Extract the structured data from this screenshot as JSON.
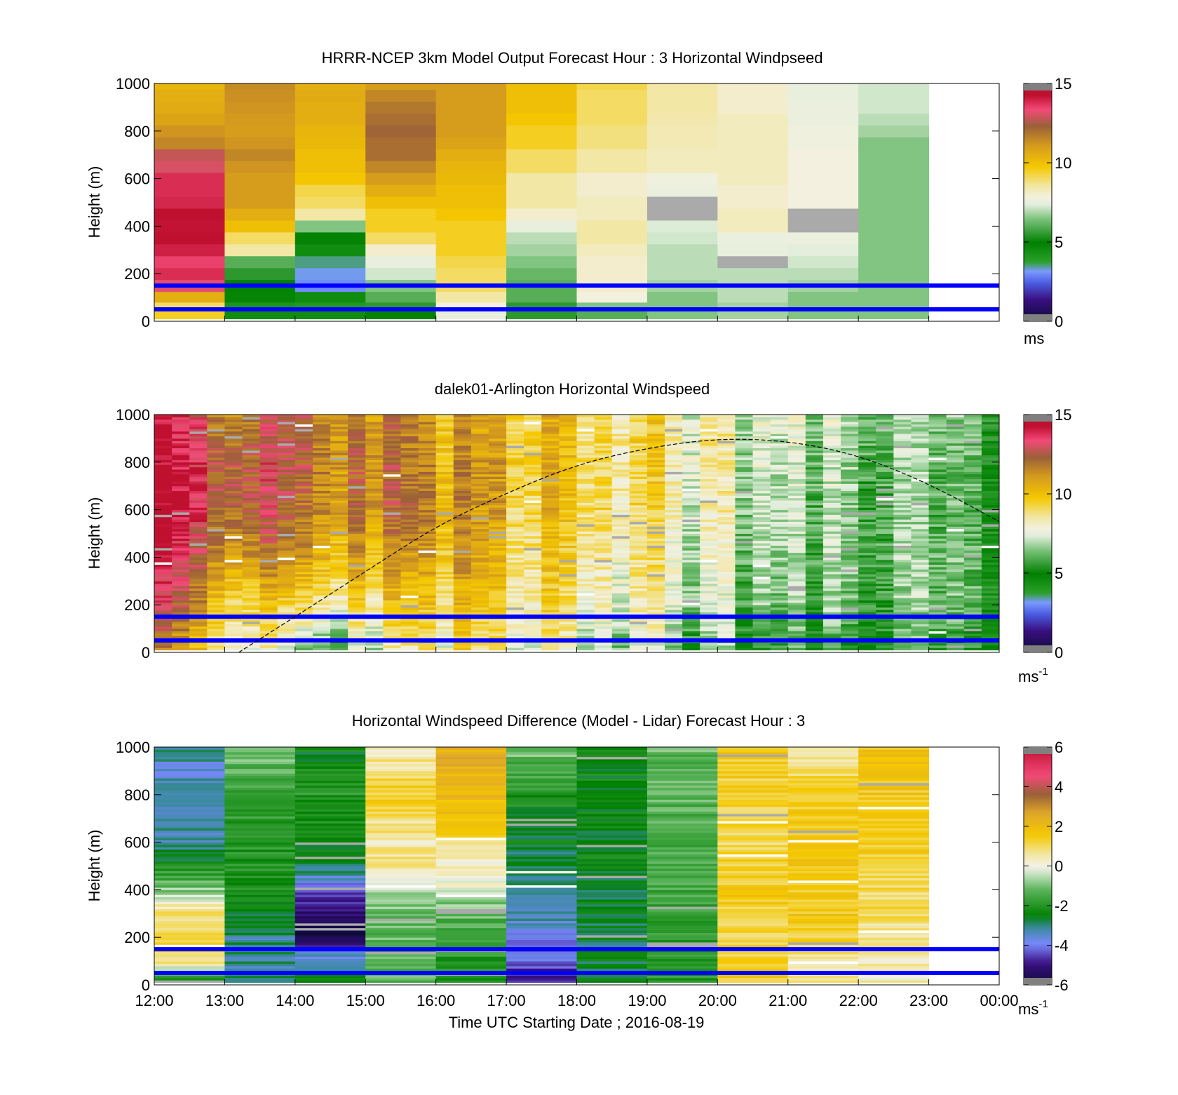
{
  "chart_data": [
    {
      "type": "heatmap",
      "title": "HRRR-NCEP 3km Model Output   Forecast Hour : 3 Horizontal Windpseed",
      "ylabel": "Height (m)",
      "ylim": [
        0,
        1000
      ],
      "yticks": [
        "0",
        "200",
        "400",
        "600",
        "800",
        "1000"
      ],
      "xlim_hours": [
        12,
        24
      ],
      "colorbar": {
        "min": 0,
        "max": 15,
        "ticks": [
          "0",
          "5",
          "10",
          "15"
        ],
        "unit": "ms",
        "unit_sup": ""
      },
      "hlines_m": [
        150,
        50
      ],
      "heights_m": [
        25,
        60,
        100,
        150,
        200,
        250,
        300,
        350,
        400,
        450,
        500,
        550,
        600,
        650,
        700,
        750,
        800,
        850,
        900,
        950,
        1000
      ],
      "columns": [
        {
          "hour": 12,
          "values": [
            9.5,
            9.0,
            10.5,
            13.2,
            13.8,
            13.5,
            14.0,
            14.5,
            14.2,
            14.3,
            13.9,
            13.8,
            13.8,
            13.0,
            12.8,
            11.5,
            11.2,
            10.8,
            10.6,
            10.5,
            10.3
          ]
        },
        {
          "hour": 13,
          "values": [
            4.5,
            4.2,
            4.8,
            5.0,
            5.5,
            6.0,
            8.5,
            9.0,
            10.0,
            10.5,
            11.0,
            11.0,
            11.0,
            11.2,
            11.5,
            11.2,
            11.0,
            11.1,
            11.2,
            11.3,
            11.4
          ]
        },
        {
          "hour": 14,
          "values": [
            4.5,
            4.0,
            4.5,
            3.0,
            3.2,
            3.5,
            4.5,
            5.0,
            6.5,
            8.5,
            9.0,
            9.2,
            9.8,
            10.0,
            10.0,
            10.2,
            10.3,
            10.5,
            10.5,
            10.6,
            10.5
          ]
        },
        {
          "hour": 15,
          "values": [
            5.0,
            5.5,
            6.0,
            6.5,
            7.2,
            7.5,
            8.0,
            9.0,
            9.5,
            9.5,
            10.0,
            10.5,
            11.0,
            11.5,
            12.0,
            12.0,
            12.2,
            12.0,
            11.8,
            11.5,
            11.0
          ]
        },
        {
          "hour": 16,
          "values": [
            7.5,
            7.8,
            8.5,
            9.0,
            9.0,
            9.2,
            9.5,
            9.5,
            9.5,
            9.8,
            10.0,
            10.0,
            10.2,
            10.3,
            10.5,
            10.8,
            11.0,
            11.0,
            11.0,
            11.0,
            11.0
          ]
        },
        {
          "hour": 17,
          "values": [
            5.5,
            5.5,
            6.0,
            6.0,
            6.2,
            6.5,
            6.8,
            7.0,
            7.5,
            8.0,
            8.5,
            8.5,
            8.5,
            9.0,
            9.0,
            9.5,
            9.5,
            9.8,
            10.0,
            10.0,
            10.0
          ]
        },
        {
          "hour": 18,
          "values": [
            6.0,
            6.5,
            7.8,
            8.0,
            8.0,
            8.0,
            8.2,
            8.5,
            8.5,
            8.2,
            8.2,
            8.0,
            8.0,
            8.5,
            8.5,
            8.8,
            8.8,
            9.0,
            9.0,
            9.0,
            9.2
          ]
        },
        {
          "hour": 19,
          "values": [
            6.5,
            6.5,
            6.5,
            6.8,
            7.0,
            7.0,
            7.0,
            7.2,
            7.3,
            -1,
            -1,
            7.6,
            7.7,
            8.2,
            8.2,
            8.3,
            8.3,
            8.4,
            8.5,
            8.5,
            8.5
          ]
        },
        {
          "hour": 20,
          "values": [
            6.8,
            6.8,
            7.0,
            7.0,
            7.0,
            -1,
            7.5,
            7.6,
            8.2,
            8.2,
            8.0,
            8.0,
            8.2,
            8.2,
            8.2,
            8.2,
            8.2,
            8.2,
            8.0,
            8.0,
            8.0
          ]
        },
        {
          "hour": 21,
          "values": [
            6.5,
            6.5,
            6.5,
            6.8,
            7.0,
            7.2,
            7.4,
            7.6,
            -1,
            -1,
            7.8,
            7.8,
            7.8,
            7.8,
            7.8,
            7.7,
            7.7,
            7.6,
            7.6,
            7.5,
            7.5
          ]
        },
        {
          "hour": 22,
          "values": [
            6.5,
            6.5,
            6.5,
            6.5,
            6.5,
            6.5,
            6.5,
            6.5,
            6.5,
            6.5,
            6.5,
            6.5,
            6.5,
            6.5,
            6.5,
            6.5,
            6.8,
            7.0,
            7.2,
            7.2,
            7.2
          ]
        }
      ]
    },
    {
      "type": "heatmap",
      "title": "dalek01-Arlington  Horizontal Windspeed",
      "ylabel": "Height (m)",
      "ylim": [
        0,
        1000
      ],
      "yticks": [
        "0",
        "200",
        "400",
        "600",
        "800",
        "1000"
      ],
      "xlim_hours": [
        12,
        24
      ],
      "colorbar": {
        "min": 0,
        "max": 15,
        "ticks": [
          "0",
          "5",
          "10",
          "15"
        ],
        "unit": "ms",
        "unit_sup": "-1"
      },
      "hlines_m": [
        150,
        50
      ],
      "columns_per_hour": 4,
      "column_range_hours": [
        12,
        23.75
      ],
      "profile_knots_m": [
        0,
        200,
        400,
        600,
        800,
        1000
      ],
      "profile_columns": [
        {
          "hour": 12.0,
          "speeds": [
            11,
            13,
            13.8,
            14.5,
            14.2,
            14
          ]
        },
        {
          "hour": 13.0,
          "speeds": [
            8.5,
            9.8,
            11.5,
            12.8,
            13.0,
            12
          ]
        },
        {
          "hour": 14.0,
          "speeds": [
            6.0,
            8.8,
            10.8,
            11.6,
            12.2,
            12
          ]
        },
        {
          "hour": 15.0,
          "speeds": [
            7.0,
            9.2,
            10.5,
            11.8,
            11.8,
            11.5
          ]
        },
        {
          "hour": 16.0,
          "speeds": [
            8.5,
            9.5,
            10.5,
            11.0,
            10.8,
            10.5
          ]
        },
        {
          "hour": 17.0,
          "speeds": [
            8.0,
            9.0,
            9.5,
            10.0,
            10.2,
            10.0
          ]
        },
        {
          "hour": 18.0,
          "speeds": [
            7.8,
            8.8,
            9.2,
            9.8,
            10.0,
            9.8
          ]
        },
        {
          "hour": 19.0,
          "speeds": [
            6.5,
            7.8,
            8.2,
            8.6,
            8.8,
            8.8
          ]
        },
        {
          "hour": 20.0,
          "speeds": [
            6.0,
            6.8,
            7.2,
            7.6,
            7.8,
            8.0
          ]
        },
        {
          "hour": 21.0,
          "speeds": [
            5.5,
            6.3,
            6.6,
            6.8,
            7.0,
            7.4
          ]
        },
        {
          "hour": 22.0,
          "speeds": [
            5.2,
            6.0,
            6.2,
            6.2,
            6.4,
            6.8
          ]
        },
        {
          "hour": 23.0,
          "speeds": [
            5.0,
            5.8,
            5.8,
            5.6,
            5.8,
            6.0
          ]
        }
      ],
      "boundary_layer_curve_m": [
        {
          "hour": 13.2,
          "height": 0
        },
        {
          "hour": 14.0,
          "height": 150
        },
        {
          "hour": 15.0,
          "height": 340
        },
        {
          "hour": 16.0,
          "height": 530
        },
        {
          "hour": 17.0,
          "height": 670
        },
        {
          "hour": 18.0,
          "height": 790
        },
        {
          "hour": 19.0,
          "height": 860
        },
        {
          "hour": 20.0,
          "height": 900
        },
        {
          "hour": 21.0,
          "height": 890
        },
        {
          "hour": 22.0,
          "height": 830
        },
        {
          "hour": 23.0,
          "height": 710
        },
        {
          "hour": 24.0,
          "height": 550
        }
      ]
    },
    {
      "type": "heatmap",
      "title": "Horizontal Windspeed Difference (Model - Lidar) Forecast Hour : 3",
      "ylabel": "Height (m)",
      "xlabel": "Time UTC  Starting Date ; 2016-08-19",
      "ylim": [
        0,
        1000
      ],
      "yticks": [
        "0",
        "200",
        "400",
        "600",
        "800",
        "1000"
      ],
      "xlim_hours": [
        12,
        24
      ],
      "xticks": [
        "12:00",
        "13:00",
        "14:00",
        "15:00",
        "16:00",
        "17:00",
        "18:00",
        "19:00",
        "20:00",
        "21:00",
        "22:00",
        "23:00",
        "00:00"
      ],
      "colorbar": {
        "min": -6,
        "max": 6,
        "ticks": [
          "-6",
          "-4",
          "-2",
          "0",
          "2",
          "4",
          "6"
        ],
        "unit": "ms",
        "unit_sup": "-1"
      },
      "hlines_m": [
        150,
        50
      ],
      "profile_knots_m": [
        0,
        100,
        200,
        300,
        400,
        500,
        600,
        700,
        800,
        900,
        1000
      ],
      "profile_columns": [
        {
          "hour": 12,
          "diffs": [
            -3.5,
            1.0,
            1.2,
            1.0,
            -0.8,
            -2.2,
            -3.2,
            -3.0,
            -3.2,
            -3.6,
            -3.0
          ]
        },
        {
          "hour": 13,
          "diffs": [
            -3.0,
            -3.2,
            -3.0,
            -2.5,
            -2.3,
            -2.0,
            -2.0,
            -1.8,
            -1.6,
            -1.4,
            -0.8
          ]
        },
        {
          "hour": 14,
          "diffs": [
            -2.5,
            -3.0,
            -5.6,
            -5.2,
            -4.2,
            -2.8,
            -2.6,
            -2.2,
            -2.0,
            -2.2,
            -2.5
          ]
        },
        {
          "hour": 15,
          "diffs": [
            -1.2,
            -1.4,
            -1.2,
            -1.0,
            -0.6,
            0.8,
            0.6,
            0.8,
            1.4,
            0.8,
            0.4
          ]
        },
        {
          "hour": 16,
          "diffs": [
            -2.2,
            -2.0,
            -1.8,
            -1.2,
            -0.3,
            0.3,
            0.8,
            1.8,
            2.0,
            2.2,
            2.4
          ]
        },
        {
          "hour": 17,
          "diffs": [
            -5.0,
            -4.2,
            -3.8,
            -3.2,
            -3.0,
            -2.8,
            -2.6,
            -2.4,
            -2.0,
            -1.5,
            -1.0
          ]
        },
        {
          "hour": 18,
          "diffs": [
            -2.4,
            -2.6,
            -2.8,
            -2.6,
            -2.7,
            -2.5,
            -2.4,
            -2.5,
            -2.6,
            -2.4,
            -2.2
          ]
        },
        {
          "hour": 19,
          "diffs": [
            -2.0,
            -1.9,
            -1.8,
            -1.7,
            -1.6,
            -1.5,
            -1.5,
            -1.4,
            -1.3,
            -1.2,
            -1.2
          ]
        },
        {
          "hour": 20,
          "diffs": [
            1.5,
            1.4,
            1.2,
            1.3,
            1.5,
            1.4,
            1.0,
            1.2,
            1.4,
            1.3,
            1.6
          ]
        },
        {
          "hour": 21,
          "diffs": [
            0.8,
            0.6,
            1.2,
            1.6,
            1.4,
            1.6,
            1.8,
            1.4,
            1.5,
            1.0,
            0.6
          ]
        },
        {
          "hour": 22,
          "diffs": [
            0.3,
            0.4,
            0.6,
            0.9,
            1.0,
            1.2,
            1.4,
            1.5,
            1.6,
            1.7,
            1.8
          ]
        }
      ]
    }
  ]
}
